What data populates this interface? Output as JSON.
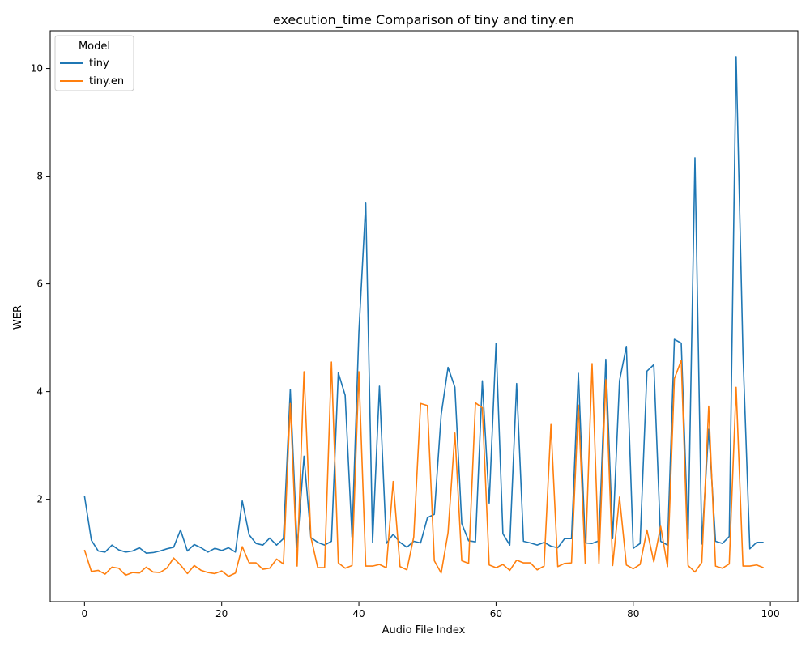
{
  "chart_data": {
    "type": "line",
    "title": "execution_time Comparison of tiny and tiny.en",
    "xlabel": "Audio File Index",
    "ylabel": "WER",
    "xlim": [
      -5,
      104
    ],
    "ylim": [
      0.1,
      10.7
    ],
    "x_ticks": [
      0,
      20,
      40,
      60,
      80,
      100
    ],
    "y_ticks": [
      2,
      4,
      6,
      8,
      10
    ],
    "grid": false,
    "legend": {
      "title": "Model",
      "position": "top-left"
    },
    "x": [
      0,
      1,
      2,
      3,
      4,
      5,
      6,
      7,
      8,
      9,
      10,
      11,
      12,
      13,
      14,
      15,
      16,
      17,
      18,
      19,
      20,
      21,
      22,
      23,
      24,
      25,
      26,
      27,
      28,
      29,
      30,
      31,
      32,
      33,
      34,
      35,
      36,
      37,
      38,
      39,
      40,
      41,
      42,
      43,
      44,
      45,
      46,
      47,
      48,
      49,
      50,
      51,
      52,
      53,
      54,
      55,
      56,
      57,
      58,
      59,
      60,
      61,
      62,
      63,
      64,
      65,
      66,
      67,
      68,
      69,
      70,
      71,
      72,
      73,
      74,
      75,
      76,
      77,
      78,
      79,
      80,
      81,
      82,
      83,
      84,
      85,
      86,
      87,
      88,
      89,
      90,
      91,
      92,
      93,
      94,
      95,
      96,
      97,
      98,
      99
    ],
    "series": [
      {
        "name": "tiny",
        "color": "#1f77b4",
        "values": [
          2.06,
          1.24,
          1.04,
          1.02,
          1.15,
          1.06,
          1.02,
          1.04,
          1.1,
          1.0,
          1.01,
          1.04,
          1.08,
          1.11,
          1.43,
          1.04,
          1.16,
          1.1,
          1.02,
          1.09,
          1.05,
          1.1,
          1.02,
          1.97,
          1.34,
          1.18,
          1.15,
          1.28,
          1.15,
          1.27,
          4.04,
          1.1,
          2.8,
          1.29,
          1.2,
          1.15,
          1.22,
          4.35,
          3.93,
          1.3,
          5.1,
          7.5,
          1.2,
          4.1,
          1.18,
          1.35,
          1.2,
          1.11,
          1.22,
          1.19,
          1.66,
          1.72,
          3.57,
          4.45,
          4.08,
          1.55,
          1.23,
          1.21,
          4.2,
          1.93,
          4.9,
          1.36,
          1.15,
          4.15,
          1.22,
          1.19,
          1.15,
          1.2,
          1.13,
          1.1,
          1.27,
          1.27,
          4.34,
          1.19,
          1.18,
          1.23,
          4.6,
          1.27,
          4.2,
          4.84,
          1.09,
          1.18,
          4.38,
          4.5,
          1.22,
          1.15,
          4.97,
          4.9,
          1.26,
          8.34,
          1.17,
          3.3,
          1.22,
          1.18,
          1.31,
          10.22,
          4.7,
          1.08,
          1.2,
          1.2
        ]
      },
      {
        "name": "tiny.en",
        "color": "#ff7f0e",
        "values": [
          1.06,
          0.66,
          0.68,
          0.61,
          0.74,
          0.72,
          0.59,
          0.64,
          0.63,
          0.74,
          0.65,
          0.64,
          0.72,
          0.91,
          0.78,
          0.62,
          0.77,
          0.68,
          0.64,
          0.62,
          0.67,
          0.57,
          0.63,
          1.12,
          0.82,
          0.82,
          0.7,
          0.72,
          0.89,
          0.8,
          3.78,
          0.76,
          4.37,
          1.3,
          0.73,
          0.73,
          4.55,
          0.82,
          0.72,
          0.77,
          4.37,
          0.76,
          0.76,
          0.79,
          0.73,
          2.33,
          0.75,
          0.69,
          1.3,
          3.78,
          3.74,
          0.86,
          0.63,
          1.38,
          3.23,
          0.86,
          0.81,
          3.79,
          3.7,
          0.78,
          0.73,
          0.79,
          0.68,
          0.87,
          0.82,
          0.82,
          0.69,
          0.76,
          3.39,
          0.75,
          0.81,
          0.82,
          3.75,
          0.81,
          4.52,
          0.81,
          4.22,
          0.77,
          2.04,
          0.78,
          0.71,
          0.79,
          1.43,
          0.84,
          1.5,
          0.75,
          4.24,
          4.58,
          0.77,
          0.65,
          0.83,
          3.73,
          0.76,
          0.72,
          0.8,
          4.08,
          0.76,
          0.76,
          0.78,
          0.73
        ]
      }
    ]
  }
}
